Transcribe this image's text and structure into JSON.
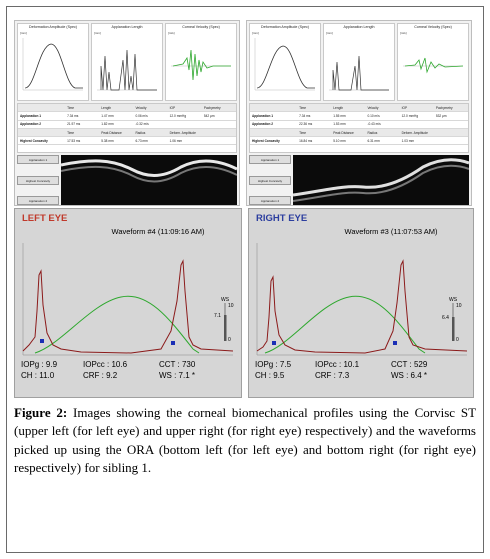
{
  "corvis_panels": [
    {
      "id": "left",
      "plots": [
        {
          "title": "Deformation Amplitude (Spec)",
          "unit": "[mm]"
        },
        {
          "title": "Applanation Length",
          "unit": "[mm]"
        },
        {
          "title": "Corneal Velocity (Spec)",
          "unit": "[m/s]"
        }
      ],
      "table": [
        [
          "",
          "Time",
          "Length",
          "Velocity",
          "IOP",
          "Pachymetry"
        ],
        [
          "Applanation 1",
          "7.34 ms",
          "1.47 mm",
          "0.06 m/s",
          "12.0 mmHg",
          "542 µm"
        ],
        [
          "Applanation 2",
          "21.97 ms",
          "1.82 mm",
          "-0.32 m/s",
          "",
          ""
        ],
        [
          "",
          "Time",
          "Peak Distance",
          "Radius",
          "Deform. Amplitude",
          ""
        ],
        [
          "Highest Concavity",
          "17.53 ms",
          "5.38 mm",
          "6.73 mm",
          "1.06 mm",
          ""
        ]
      ],
      "buttons": [
        "Applanation 1",
        "Highest Concavity",
        "Applanation 2"
      ]
    },
    {
      "id": "right",
      "plots": [
        {
          "title": "Deformation Amplitude (Spec)",
          "unit": "[mm]"
        },
        {
          "title": "Applanation Length",
          "unit": "[mm]"
        },
        {
          "title": "Corneal Velocity (Spec)",
          "unit": "[m/s]"
        }
      ],
      "table": [
        [
          "",
          "Time",
          "Length",
          "Velocity",
          "IOP",
          "Pachymetry"
        ],
        [
          "Applanation 1",
          "7.34 ms",
          "1.55 mm",
          "0.10 m/s",
          "12.0 mmHg",
          "532 µm"
        ],
        [
          "Applanation 2",
          "22.36 ms",
          "1.53 mm",
          "-0.43 m/s",
          "",
          ""
        ],
        [
          "",
          "Time",
          "Peak Distance",
          "Radius",
          "Deform. Amplitude",
          ""
        ],
        [
          "Highest Concavity",
          "16.84 ms",
          "5.10 mm",
          "6.31 mm",
          "1.03 mm",
          ""
        ]
      ],
      "buttons": [
        "Applanation 1",
        "Highest Concavity",
        "Applanation 2"
      ]
    }
  ],
  "ora_panels": [
    {
      "id": "left",
      "eye_label": "LEFT EYE",
      "eye_color": "#c0392b",
      "waveform_title": "Waveform #4 (11:09:16 AM)",
      "ws_axis": [
        "WS",
        "10",
        "7.1",
        "0"
      ],
      "params_row1": [
        "IOPg : 9.9",
        "IOPcc : 10.6",
        "CCT : 730"
      ],
      "params_row2": [
        "CH   : 11.0",
        "CRF   : 9.2",
        "WS : 7.1 *"
      ]
    },
    {
      "id": "right",
      "eye_label": "RIGHT EYE",
      "eye_color": "#2c3e9f",
      "waveform_title": "Waveform #3 (11:07:53 AM)",
      "ws_axis": [
        "WS",
        "10",
        "6.4",
        "0"
      ],
      "params_row1": [
        "IOPg : 7.5",
        "IOPcc : 10.1",
        "CCT : 529"
      ],
      "params_row2": [
        "CH   : 9.5",
        "CRF   : 7.3",
        "WS : 6.4 *"
      ]
    }
  ],
  "caption": {
    "label": "Figure 2:",
    "text": "Images showing the corneal biomechanical profiles using the Corvisc ST (upper left (for left eye) and upper right (for right eye) respectively) and the waveforms picked up using the ORA (bottom left (for left eye) and bottom right (for right eye) respectively) for sibling 1."
  },
  "colors": {
    "ora_pressure_curve": "#2ea82e",
    "ora_signal_curve": "#8b1a1a",
    "ora_marker": "#1a2fb5"
  }
}
